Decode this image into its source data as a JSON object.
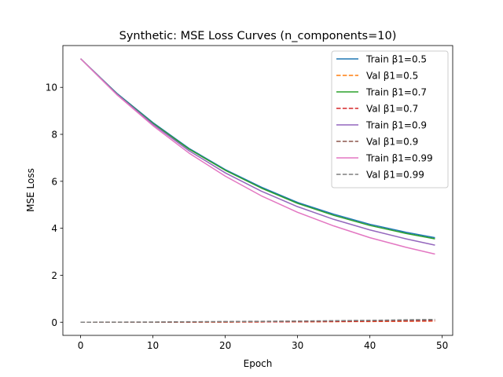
{
  "chart_data": {
    "type": "line",
    "title": "Synthetic: MSE Loss Curves (n_components=10)",
    "xlabel": "Epoch",
    "ylabel": "MSE Loss",
    "xlim": [
      -2.45,
      51.45
    ],
    "ylim": [
      -0.56,
      11.78
    ],
    "xticks": [
      0,
      10,
      20,
      30,
      40,
      50
    ],
    "yticks": [
      0,
      2,
      4,
      6,
      8,
      10
    ],
    "grid": false,
    "legend_position": "top-right",
    "series": [
      {
        "name": "Train β1=0.5",
        "color": "#1f77b4",
        "dash": "solid",
        "x": [
          0,
          5,
          10,
          15,
          20,
          25,
          30,
          35,
          40,
          45,
          49
        ],
        "y": [
          11.22,
          9.75,
          8.5,
          7.4,
          6.5,
          5.75,
          5.1,
          4.6,
          4.17,
          3.83,
          3.6
        ]
      },
      {
        "name": "Val β1=0.5",
        "color": "#ff7f0e",
        "dash": "dashed",
        "x": [
          0,
          10,
          20,
          30,
          40,
          49
        ],
        "y": [
          0.0,
          0.0,
          0.01,
          0.02,
          0.03,
          0.05
        ]
      },
      {
        "name": "Train β1=0.7",
        "color": "#2ca02c",
        "dash": "solid",
        "x": [
          0,
          5,
          10,
          15,
          20,
          25,
          30,
          35,
          40,
          45,
          49
        ],
        "y": [
          11.22,
          9.73,
          8.47,
          7.37,
          6.47,
          5.71,
          5.06,
          4.55,
          4.12,
          3.78,
          3.55
        ]
      },
      {
        "name": "Val β1=0.7",
        "color": "#d62728",
        "dash": "dashed",
        "x": [
          0,
          10,
          20,
          30,
          40,
          49
        ],
        "y": [
          0.0,
          0.0,
          0.01,
          0.02,
          0.04,
          0.06
        ]
      },
      {
        "name": "Train β1=0.9",
        "color": "#9467bd",
        "dash": "solid",
        "x": [
          0,
          5,
          10,
          15,
          20,
          25,
          30,
          35,
          40,
          45,
          49
        ],
        "y": [
          11.22,
          9.72,
          8.43,
          7.3,
          6.36,
          5.58,
          4.92,
          4.38,
          3.93,
          3.55,
          3.28
        ]
      },
      {
        "name": "Val β1=0.9",
        "color": "#8c564b",
        "dash": "dashed",
        "x": [
          0,
          10,
          20,
          30,
          40,
          49
        ],
        "y": [
          0.0,
          0.0,
          0.02,
          0.04,
          0.07,
          0.1
        ]
      },
      {
        "name": "Train β1=0.99",
        "color": "#e377c2",
        "dash": "solid",
        "x": [
          0,
          5,
          10,
          15,
          20,
          25,
          30,
          35,
          40,
          45,
          49
        ],
        "y": [
          11.22,
          9.69,
          8.37,
          7.2,
          6.22,
          5.38,
          4.68,
          4.1,
          3.6,
          3.19,
          2.9
        ]
      },
      {
        "name": "Val β1=0.99",
        "color": "#7f7f7f",
        "dash": "dashed",
        "x": [
          0,
          10,
          20,
          30,
          40,
          49
        ],
        "y": [
          0.0,
          0.01,
          0.03,
          0.05,
          0.08,
          0.12
        ]
      }
    ]
  }
}
